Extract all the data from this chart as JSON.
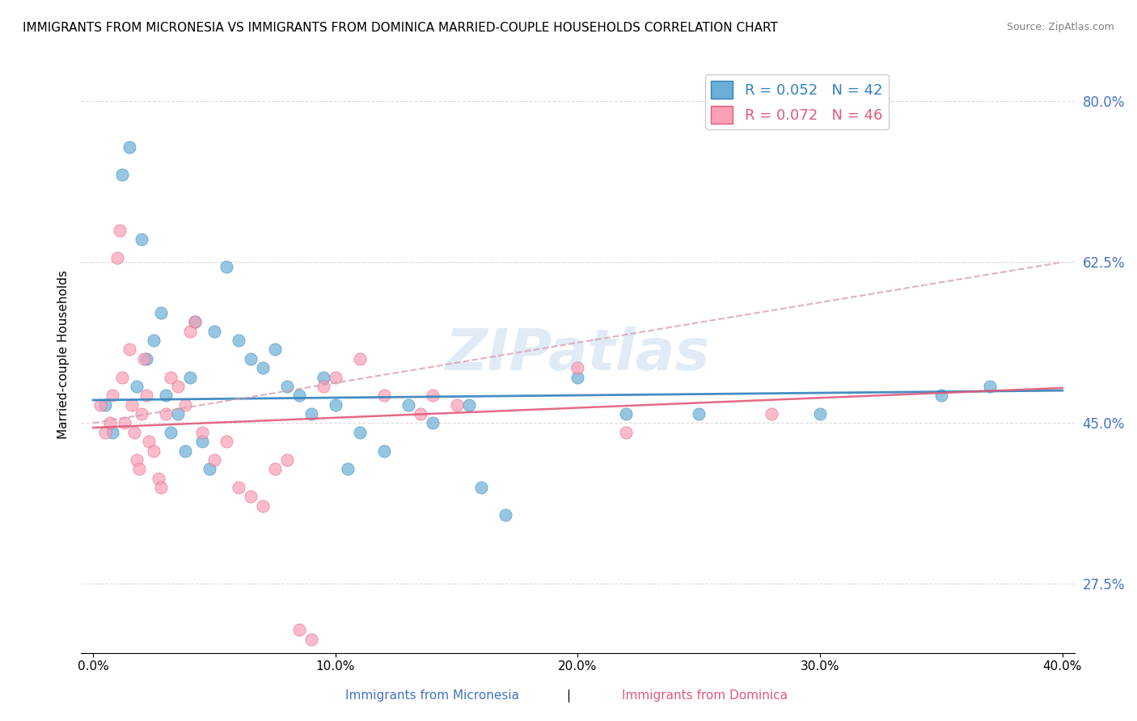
{
  "title": "IMMIGRANTS FROM MICRONESIA VS IMMIGRANTS FROM DOMINICA MARRIED-COUPLE HOUSEHOLDS CORRELATION CHART",
  "source": "Source: ZipAtlas.com",
  "ylabel": "Married-couple Households",
  "xlabel_micronesia": "Immigrants from Micronesia",
  "xlabel_dominica": "Immigrants from Dominica",
  "xlim": [
    0.0,
    40.0
  ],
  "ylim": [
    20.0,
    85.0
  ],
  "yticks": [
    27.5,
    45.0,
    62.5,
    80.0
  ],
  "xticks": [
    0.0,
    10.0,
    20.0,
    30.0,
    40.0
  ],
  "legend_micronesia": "R = 0.052   N = 42",
  "legend_dominica": "R = 0.072   N = 46",
  "color_blue": "#6baed6",
  "color_pink": "#fa9fb5",
  "color_blue_line": "#3182bd",
  "color_pink_line": "#e05a7a",
  "color_pink_dashed": "#d4a0b0",
  "watermark": "ZIPatlas",
  "micronesia_x": [
    0.5,
    0.8,
    1.2,
    1.5,
    1.8,
    2.0,
    2.2,
    2.5,
    2.8,
    3.0,
    3.2,
    3.5,
    3.8,
    4.0,
    4.2,
    4.5,
    4.8,
    5.0,
    5.5,
    6.0,
    6.5,
    7.0,
    7.5,
    8.0,
    8.5,
    9.0,
    9.5,
    10.0,
    10.5,
    11.0,
    12.0,
    13.0,
    14.0,
    15.5,
    16.0,
    17.0,
    20.0,
    22.0,
    25.0,
    30.0,
    35.0,
    37.0
  ],
  "micronesia_y": [
    47.0,
    44.0,
    72.0,
    75.0,
    49.0,
    65.0,
    52.0,
    54.0,
    57.0,
    48.0,
    44.0,
    46.0,
    42.0,
    50.0,
    56.0,
    43.0,
    40.0,
    55.0,
    62.0,
    54.0,
    52.0,
    51.0,
    53.0,
    49.0,
    48.0,
    46.0,
    50.0,
    47.0,
    40.0,
    44.0,
    42.0,
    47.0,
    45.0,
    47.0,
    38.0,
    35.0,
    50.0,
    46.0,
    46.0,
    46.0,
    48.0,
    49.0
  ],
  "dominica_x": [
    0.3,
    0.5,
    0.7,
    0.8,
    1.0,
    1.1,
    1.2,
    1.3,
    1.5,
    1.6,
    1.7,
    1.8,
    1.9,
    2.0,
    2.1,
    2.2,
    2.3,
    2.5,
    2.7,
    2.8,
    3.0,
    3.2,
    3.5,
    3.8,
    4.0,
    4.2,
    4.5,
    5.0,
    5.5,
    6.0,
    6.5,
    7.0,
    7.5,
    8.0,
    8.5,
    9.0,
    9.5,
    10.0,
    11.0,
    12.0,
    13.5,
    14.0,
    15.0,
    20.0,
    22.0,
    28.0
  ],
  "dominica_y": [
    47.0,
    44.0,
    45.0,
    48.0,
    63.0,
    66.0,
    50.0,
    45.0,
    53.0,
    47.0,
    44.0,
    41.0,
    40.0,
    46.0,
    52.0,
    48.0,
    43.0,
    42.0,
    39.0,
    38.0,
    46.0,
    50.0,
    49.0,
    47.0,
    55.0,
    56.0,
    44.0,
    41.0,
    43.0,
    38.0,
    37.0,
    36.0,
    40.0,
    41.0,
    22.5,
    21.5,
    49.0,
    50.0,
    52.0,
    48.0,
    46.0,
    48.0,
    47.0,
    51.0,
    44.0,
    46.0
  ]
}
